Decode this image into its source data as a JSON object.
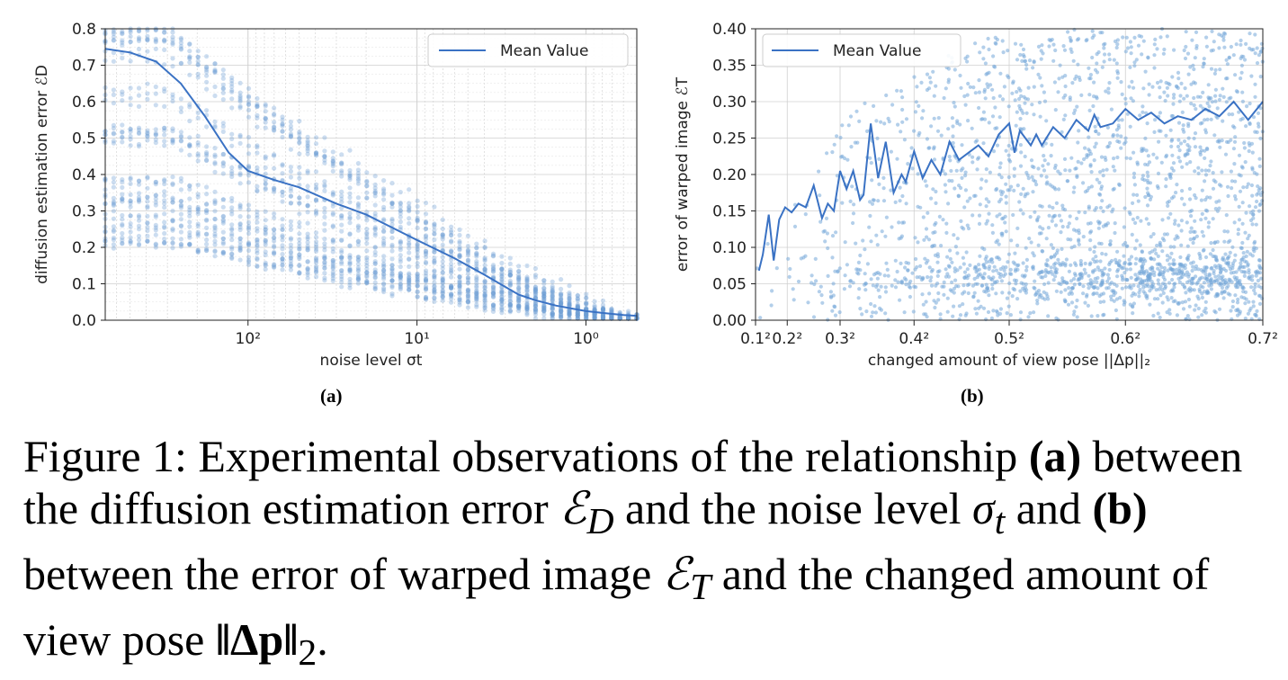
{
  "chart_data": [
    {
      "id": "a",
      "type": "scatter",
      "subfigure_label": "(a)",
      "xlabel": "noise level σt",
      "ylabel": "diffusion estimation error ℰD",
      "x_scale": "log-reversed",
      "xlim": [
        700,
        0.5
      ],
      "ylim": [
        0,
        0.8
      ],
      "x_ticks": [
        {
          "value": 100,
          "label": "10²"
        },
        {
          "value": 10,
          "label": "10¹"
        },
        {
          "value": 1,
          "label": "10⁰"
        }
      ],
      "y_ticks": [
        "0.0",
        "0.1",
        "0.2",
        "0.3",
        "0.4",
        "0.5",
        "0.6",
        "0.7",
        "0.8"
      ],
      "grid": true,
      "legend": {
        "position": "top-right",
        "entries": [
          "Mean Value"
        ]
      },
      "series": [
        {
          "name": "Mean Value",
          "kind": "line",
          "color": "#3a72c4",
          "x": [
            700,
            500,
            350,
            250,
            180,
            130,
            100,
            70,
            50,
            30,
            20,
            10,
            6,
            4,
            2.5,
            2,
            1.5,
            1,
            0.8,
            0.6,
            0.5
          ],
          "y": [
            0.745,
            0.735,
            0.71,
            0.65,
            0.56,
            0.46,
            0.41,
            0.385,
            0.365,
            0.32,
            0.29,
            0.22,
            0.17,
            0.125,
            0.07,
            0.055,
            0.04,
            0.025,
            0.02,
            0.014,
            0.012
          ]
        },
        {
          "name": "samples",
          "kind": "scatter",
          "color": "#7ca7d6",
          "note": "many noisy trajectories decaying from 0.2–0.8 at high noise to ~0 at low noise"
        }
      ]
    },
    {
      "id": "b",
      "type": "scatter",
      "subfigure_label": "(b)",
      "xlabel": "changed amount of view pose ||Δp||₂",
      "ylabel": "error of warped image ℰT",
      "x_scale": "squared",
      "xlim": [
        0.1,
        0.7
      ],
      "ylim": [
        0,
        0.4
      ],
      "x_ticks": [
        "0.1²",
        "0.2²",
        "0.3²",
        "0.4²",
        "0.5²",
        "0.6²",
        "0.7²"
      ],
      "y_ticks": [
        "0.00",
        "0.05",
        "0.10",
        "0.15",
        "0.20",
        "0.25",
        "0.30",
        "0.35",
        "0.40"
      ],
      "grid": true,
      "legend": {
        "position": "top-left",
        "entries": [
          "Mean Value"
        ]
      },
      "series": [
        {
          "name": "Mean Value",
          "kind": "line",
          "color": "#3a72c4",
          "x": [
            0.115,
            0.13,
            0.15,
            0.165,
            0.18,
            0.195,
            0.21,
            0.225,
            0.24,
            0.255,
            0.27,
            0.28,
            0.29,
            0.3,
            0.31,
            0.32,
            0.33,
            0.335,
            0.345,
            0.355,
            0.365,
            0.375,
            0.385,
            0.39,
            0.4,
            0.41,
            0.42,
            0.43,
            0.44,
            0.45,
            0.46,
            0.47,
            0.48,
            0.49,
            0.5,
            0.505,
            0.51,
            0.52,
            0.525,
            0.53,
            0.54,
            0.55,
            0.56,
            0.57,
            0.575,
            0.58,
            0.59,
            0.6,
            0.61,
            0.62,
            0.63,
            0.64,
            0.65,
            0.66,
            0.67,
            0.68,
            0.69,
            0.7
          ],
          "y": [
            0.068,
            0.09,
            0.145,
            0.082,
            0.138,
            0.155,
            0.148,
            0.16,
            0.155,
            0.185,
            0.14,
            0.16,
            0.15,
            0.205,
            0.18,
            0.205,
            0.165,
            0.172,
            0.27,
            0.195,
            0.245,
            0.175,
            0.2,
            0.19,
            0.232,
            0.195,
            0.22,
            0.2,
            0.245,
            0.22,
            0.23,
            0.24,
            0.225,
            0.255,
            0.27,
            0.23,
            0.26,
            0.24,
            0.255,
            0.24,
            0.265,
            0.25,
            0.275,
            0.26,
            0.282,
            0.265,
            0.27,
            0.29,
            0.275,
            0.285,
            0.27,
            0.28,
            0.275,
            0.29,
            0.28,
            0.3,
            0.275,
            0.3
          ]
        },
        {
          "name": "samples",
          "kind": "scatter",
          "color": "#7ca7d6",
          "note": "dense cloud whose density grows with pose change"
        }
      ]
    }
  ],
  "caption": {
    "prefix": "Figure 1: Experimental observations of the relationship",
    "label_a": "(a)",
    "mid1": "between the diffusion estimation error",
    "ed": "ℰ",
    "ed_sub": "D",
    "mid2": "and the noise level",
    "sigma": "σ",
    "sigma_sub": "t",
    "mid3": "and",
    "label_b": "(b)",
    "mid4": "between the error of warped image",
    "et": "ℰ",
    "et_sub": "T",
    "mid5": "and the changed amount of view pose",
    "norm": "‖Δp‖",
    "norm_sub": "2",
    "end": "."
  }
}
